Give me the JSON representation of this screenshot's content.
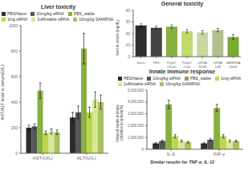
{
  "chart_data": [
    {
      "type": "bar",
      "title": "Liver toxicity",
      "categories": [
        "AST(U/L)",
        "ALT(U/L)"
      ],
      "ylabel": "AST/ALT level in serum(U/L)",
      "ylim": [
        0,
        1000
      ],
      "yticks": [
        0,
        200,
        400,
        600,
        800,
        1000
      ],
      "grid": false,
      "legend": "upper left",
      "series": [
        {
          "name": "PBS/Naive",
          "color": "#2d2d2d",
          "values": [
            200,
            280
          ],
          "errors": [
            20,
            40
          ]
        },
        {
          "name": "10mg/kg siRNA",
          "color": "#555555",
          "values": [
            210,
            320
          ],
          "errors": [
            20,
            50
          ]
        },
        {
          "name": "PBS_stable",
          "color": "#88b040",
          "values": [
            490,
            820
          ],
          "errors": [
            60,
            120
          ]
        },
        {
          "name": "1mg siRNA",
          "color": "#bcd64c",
          "values": [
            160,
            320
          ],
          "errors": [
            15,
            40
          ]
        },
        {
          "name": "1uM/stable siRNA",
          "color": "#d8e896",
          "values": [
            170,
            420
          ],
          "errors": [
            20,
            60
          ]
        },
        {
          "name": "10mg/kg SAMiRNA",
          "color": "#a8c060",
          "values": [
            165,
            400
          ],
          "errors": [
            18,
            55
          ]
        }
      ]
    },
    {
      "type": "bar",
      "title": "General toxicity",
      "categories": [
        "Naive",
        "PBS",
        "PolyIC\n(20ug)",
        "PolyIC\n(1ug)",
        "siRNA\n30nM",
        "siRNA\n1uM",
        "SAMiRNA\n30nM"
      ],
      "values": [
        27,
        25,
        26,
        22,
        21,
        23,
        17
      ],
      "errors": [
        1.5,
        1.5,
        1.5,
        1.5,
        1.5,
        1.5,
        2
      ],
      "colors": [
        "#2d2d2d",
        "#444444",
        "#88b040",
        "#c4d870",
        "#c8d8a0",
        "#b0c090",
        "#7aaa30"
      ],
      "ylabel": "level in serum (mg/dL)",
      "ylim": [
        0,
        40
      ],
      "yticks": [
        0,
        10,
        20,
        30,
        40
      ],
      "grid": false
    },
    {
      "type": "bar",
      "title": "Innate immune response",
      "subtitle": "Similar results for TNF-α, IL-12",
      "categories": [
        "IL-6",
        "INF-γ"
      ],
      "ylabel": "Induced innate immune\ncytokines in spleen(%)",
      "ylim": [
        0,
        5000000
      ],
      "yticks": [
        0,
        {
          "value": 1000000,
          "label": "1,000,000"
        },
        {
          "value": 2000000,
          "label": "2,000,000"
        },
        {
          "value": 3000000,
          "label": "3,000,000"
        },
        {
          "value": 4000000,
          "label": "4,000,000"
        },
        {
          "value": 5000000,
          "label": "5,000,000"
        }
      ],
      "grid": false,
      "legend": "upper left",
      "series": [
        {
          "name": "PBS/Naive",
          "color": "#2d2d2d",
          "values": [
            500000,
            500000
          ],
          "errors": [
            60000,
            60000
          ]
        },
        {
          "name": "10mg/kg siRNA",
          "color": "#555555",
          "values": [
            700000,
            800000
          ],
          "errors": [
            80000,
            100000
          ]
        },
        {
          "name": "PBS_stable",
          "color": "#88b040",
          "values": [
            3800000,
            3500000
          ],
          "errors": [
            350000,
            300000
          ]
        },
        {
          "name": "1mg siRNA",
          "color": "#bcd64c",
          "values": [
            1100000,
            1100000
          ],
          "errors": [
            130000,
            130000
          ]
        },
        {
          "name": "1uM/stable siRNA",
          "color": "#d8e896",
          "values": [
            700000,
            700000
          ],
          "errors": [
            80000,
            80000
          ]
        },
        {
          "name": "10mg/kg SAMiRNA",
          "color": "#a8c060",
          "values": [
            600000,
            700000
          ],
          "errors": [
            70000,
            70000
          ]
        }
      ]
    }
  ]
}
